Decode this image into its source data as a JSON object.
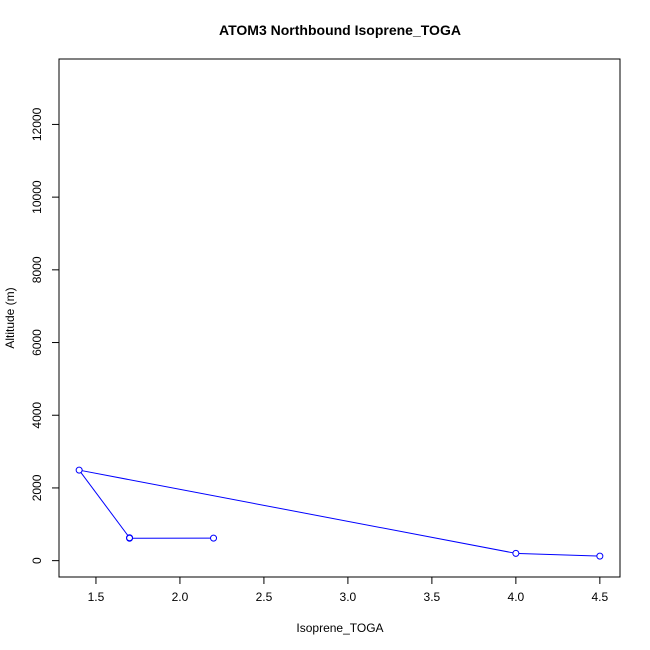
{
  "chart_data": {
    "type": "line",
    "title": "ATOM3 Northbound Isoprene_TOGA",
    "xlabel": "Isoprene_TOGA",
    "ylabel": "Altitude (m)",
    "xlim": [
      1.28,
      4.62
    ],
    "ylim": [
      -450,
      13800
    ],
    "xticks": [
      1.5,
      2.0,
      2.5,
      3.0,
      3.5,
      4.0,
      4.5
    ],
    "xtick_labels": [
      "1.5",
      "2.0",
      "2.5",
      "3.0",
      "3.5",
      "4.0",
      "4.5"
    ],
    "yticks": [
      0,
      2000,
      4000,
      6000,
      8000,
      10000,
      12000
    ],
    "ytick_labels": [
      "0",
      "2000",
      "4000",
      "6000",
      "8000",
      "10000",
      "12000"
    ],
    "series": [
      {
        "color": "#0000ff",
        "marker": "open-circle",
        "points": [
          {
            "x": 2.2,
            "y": 620
          },
          {
            "x": 1.7,
            "y": 615
          },
          {
            "x": 1.7,
            "y": 630
          },
          {
            "x": 1.4,
            "y": 2490
          },
          {
            "x": 4.0,
            "y": 200
          },
          {
            "x": 4.5,
            "y": 125
          }
        ]
      }
    ],
    "grid": false,
    "legend": "none"
  }
}
